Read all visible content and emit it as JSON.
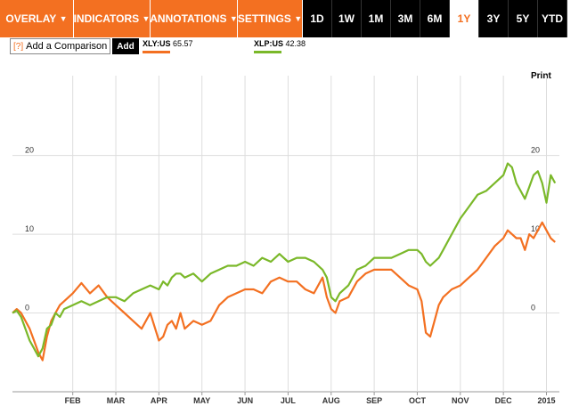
{
  "toolbar": {
    "menus": [
      {
        "label": "OVERLAY",
        "arrow": "▼"
      },
      {
        "label": "INDICATORS",
        "arrow": "▼"
      },
      {
        "label": "ANNOTATIONS",
        "arrow": "▼"
      },
      {
        "label": "SETTINGS",
        "arrow": "▼"
      }
    ],
    "ranges": [
      "1D",
      "1W",
      "1M",
      "3M",
      "6M",
      "1Y",
      "3Y",
      "5Y",
      "YTD"
    ],
    "active_range": "1Y"
  },
  "comparison": {
    "help": "[?]",
    "label": "Add a Comparison",
    "add_label": "Add"
  },
  "legend": [
    {
      "ticker": "XLY:US",
      "value": "65.57",
      "color": "#f37021"
    },
    {
      "ticker": "XLP:US",
      "value": "42.38",
      "color": "#7ab829"
    }
  ],
  "print_label": "Print",
  "colors": {
    "accent": "#f37021",
    "xly": "#f37021",
    "xlp": "#7ab829",
    "grid": "#dddddd"
  },
  "chart_data": {
    "type": "line",
    "y_ticks_left": [
      "20",
      "10",
      "0"
    ],
    "y_ticks_right": [
      "20",
      "10",
      "0"
    ],
    "ylim": [
      -10,
      29
    ],
    "x_labels": [
      "FEB",
      "MAR",
      "APR",
      "MAY",
      "JUN",
      "JUL",
      "AUG",
      "SEP",
      "OCT",
      "NOV",
      "DEC",
      "2015"
    ],
    "x_label_pos": [
      1.0,
      2.0,
      3.0,
      4.0,
      5.0,
      6.0,
      7.0,
      8.0,
      9.0,
      10.0,
      11.0,
      12.0
    ],
    "xlim": [
      -0.4,
      12.3
    ],
    "grid": true,
    "series": [
      {
        "name": "XLY:US",
        "color": "#f37021",
        "x": [
          -0.4,
          -0.3,
          -0.2,
          -0.1,
          0.0,
          0.1,
          0.2,
          0.3,
          0.4,
          0.5,
          0.6,
          0.7,
          0.8,
          1.0,
          1.2,
          1.4,
          1.6,
          1.8,
          2.0,
          2.2,
          2.4,
          2.6,
          2.8,
          3.0,
          3.1,
          3.2,
          3.3,
          3.4,
          3.5,
          3.6,
          3.8,
          4.0,
          4.2,
          4.4,
          4.6,
          4.8,
          5.0,
          5.2,
          5.4,
          5.6,
          5.8,
          6.0,
          6.2,
          6.4,
          6.6,
          6.8,
          6.9,
          7.0,
          7.1,
          7.2,
          7.4,
          7.6,
          7.8,
          8.0,
          8.2,
          8.4,
          8.6,
          8.8,
          9.0,
          9.1,
          9.2,
          9.3,
          9.4,
          9.5,
          9.6,
          9.8,
          10.0,
          10.2,
          10.4,
          10.6,
          10.8,
          11.0,
          11.1,
          11.2,
          11.3,
          11.4,
          11.5,
          11.6,
          11.7,
          11.8,
          11.9,
          12.0,
          12.1,
          12.2
        ],
        "y": [
          0,
          0.5,
          0,
          -1,
          -2,
          -3.5,
          -5,
          -6,
          -3,
          -1,
          0,
          1,
          1.5,
          2.5,
          3.8,
          2.5,
          3.5,
          2.0,
          1.0,
          0.0,
          -1.0,
          -2.0,
          0.0,
          -3.5,
          -3.0,
          -1.5,
          -1.0,
          -2.0,
          0.0,
          -2.0,
          -1.0,
          -1.5,
          -1.0,
          1.0,
          2.0,
          2.5,
          3.0,
          3.0,
          2.5,
          4.0,
          4.5,
          4.0,
          4.0,
          3.0,
          2.5,
          4.5,
          2.0,
          0.5,
          0.0,
          1.5,
          2.0,
          4.0,
          5.0,
          5.5,
          5.5,
          5.5,
          4.5,
          3.5,
          3.0,
          1.5,
          -2.5,
          -3.0,
          -1.0,
          1.0,
          2.0,
          3.0,
          3.5,
          4.5,
          5.5,
          7.0,
          8.5,
          9.5,
          10.5,
          10.0,
          9.5,
          9.5,
          8.0,
          10.0,
          9.5,
          10.5,
          11.5,
          10.5,
          9.5,
          9.0
        ]
      },
      {
        "name": "XLP:US",
        "color": "#7ab829",
        "x": [
          -0.4,
          -0.3,
          -0.2,
          -0.1,
          0.0,
          0.1,
          0.2,
          0.3,
          0.4,
          0.5,
          0.6,
          0.7,
          0.8,
          1.0,
          1.2,
          1.4,
          1.6,
          1.8,
          2.0,
          2.2,
          2.4,
          2.6,
          2.8,
          3.0,
          3.1,
          3.2,
          3.3,
          3.4,
          3.5,
          3.6,
          3.8,
          4.0,
          4.2,
          4.4,
          4.6,
          4.8,
          5.0,
          5.2,
          5.4,
          5.6,
          5.8,
          6.0,
          6.2,
          6.4,
          6.6,
          6.8,
          6.9,
          7.0,
          7.1,
          7.2,
          7.4,
          7.6,
          7.8,
          8.0,
          8.2,
          8.4,
          8.6,
          8.8,
          9.0,
          9.1,
          9.2,
          9.3,
          9.4,
          9.5,
          9.6,
          9.8,
          10.0,
          10.2,
          10.4,
          10.6,
          10.8,
          11.0,
          11.1,
          11.2,
          11.3,
          11.4,
          11.5,
          11.6,
          11.7,
          11.8,
          11.9,
          12.0,
          12.1,
          12.2
        ],
        "y": [
          0,
          0.3,
          -0.5,
          -2,
          -3.5,
          -4.5,
          -5.5,
          -4.5,
          -2.0,
          -1.5,
          0.0,
          -0.5,
          0.5,
          1.0,
          1.5,
          1.0,
          1.5,
          2.0,
          2.0,
          1.5,
          2.5,
          3.0,
          3.5,
          3.0,
          4.0,
          3.5,
          4.5,
          5.0,
          5.0,
          4.5,
          5.0,
          4.0,
          5.0,
          5.5,
          6.0,
          6.0,
          6.5,
          6.0,
          7.0,
          6.5,
          7.5,
          6.5,
          7.0,
          7.0,
          6.5,
          5.5,
          4.5,
          2.0,
          1.5,
          2.5,
          3.5,
          5.5,
          6.0,
          7.0,
          7.0,
          7.0,
          7.5,
          8.0,
          8.0,
          7.5,
          6.5,
          6.0,
          6.5,
          7.0,
          8.0,
          10.0,
          12.0,
          13.5,
          15.0,
          15.5,
          16.5,
          17.5,
          19.0,
          18.5,
          16.5,
          15.5,
          14.5,
          16.0,
          17.5,
          18.0,
          16.5,
          14.0,
          17.5,
          16.5
        ]
      }
    ]
  }
}
